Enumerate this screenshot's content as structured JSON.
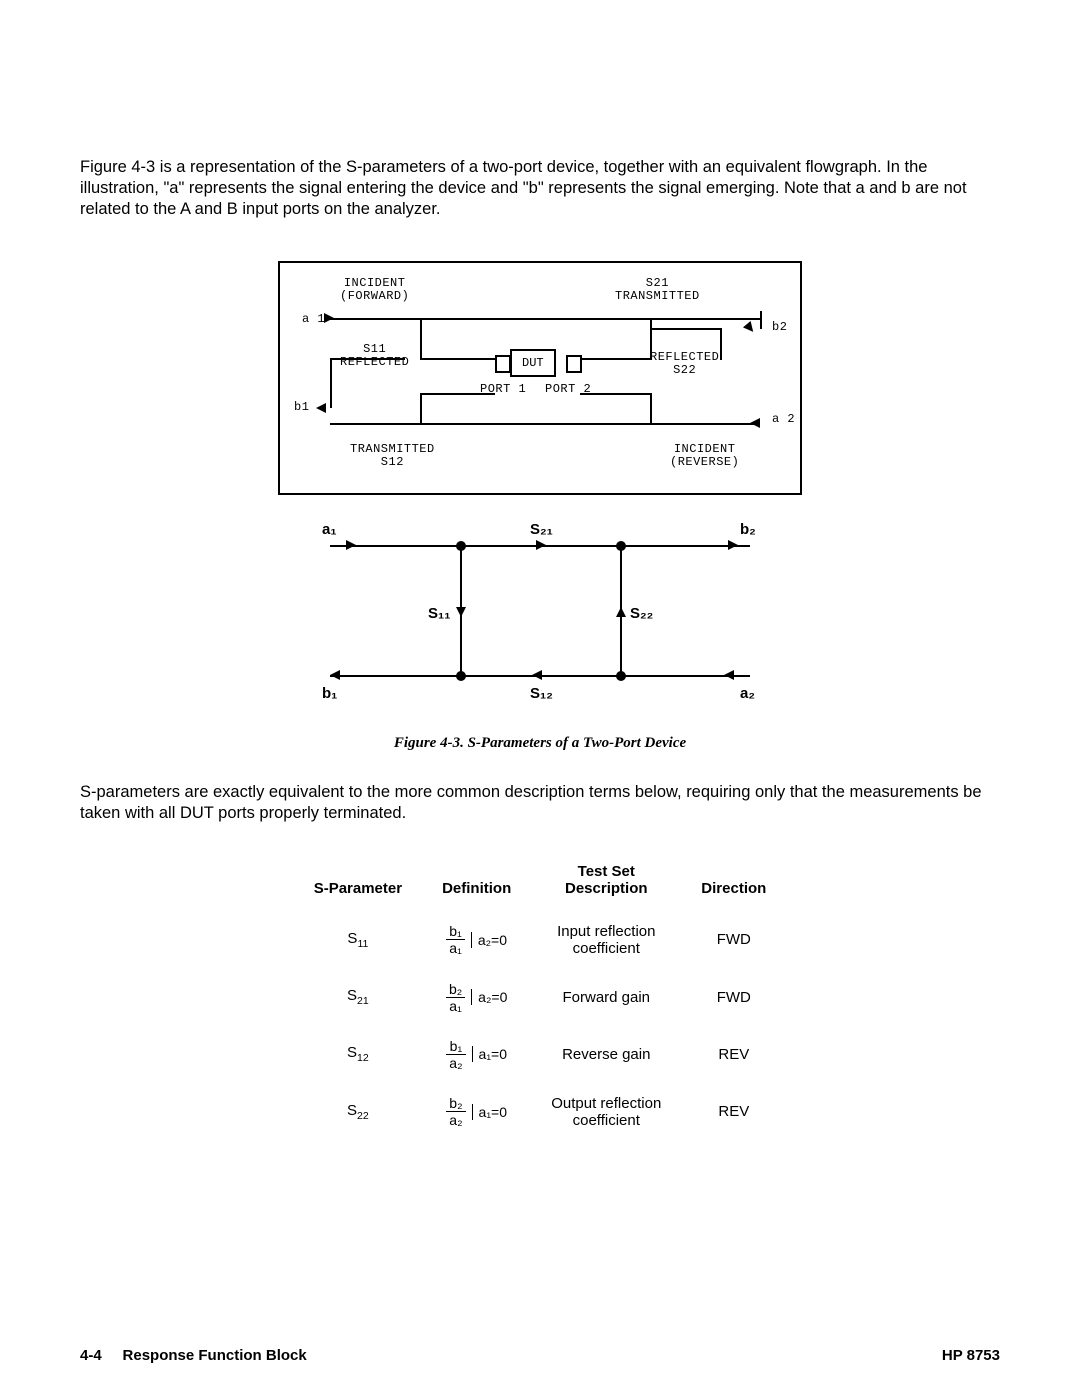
{
  "intro": "Figure 4-3 is a representation of the S-parameters of a two-port device, together with an equivalent flowgraph. In the illustration, \"a\" represents the signal entering the device and \"b\" represents the signal emerging. Note that a and b are not related to the A and B input ports on the analyzer.",
  "block_diagram": {
    "incident_fwd": "INCIDENT\n(FORWARD)",
    "s21_transmitted": "S21\nTRANSMITTED",
    "a1": "a 1",
    "b2": "b2",
    "s11_reflected": "S11\nREFLECTED",
    "dut": "DUT",
    "reflected_s22": "REFLECTED\nS22",
    "port1": "PORT 1",
    "port2": "PORT 2",
    "b1": "b1",
    "a2": "a 2",
    "transmitted_s12": "TRANSMITTED\nS12",
    "incident_rev": "INCIDENT\n(REVERSE)"
  },
  "flowgraph": {
    "a1": "a₁",
    "s21": "S₂₁",
    "b2": "b₂",
    "s11": "S₁₁",
    "s22": "S₂₂",
    "b1": "b₁",
    "s12": "S₁₂",
    "a2": "a₂",
    "line_color": "#000000"
  },
  "caption": "Figure 4-3.   S-Parameters of a Two-Port Device",
  "mid_paragraph": "S-parameters are exactly equivalent to the more common description terms below, requiring only that the measurements be taken with all DUT ports properly terminated.",
  "table": {
    "headers": {
      "param": "S-Parameter",
      "def": "Definition",
      "desc": "Test Set\nDescription",
      "dir": "Direction"
    },
    "rows": [
      {
        "param_base": "S",
        "param_sub": "11",
        "num": "b₁",
        "den": "a₁",
        "cond": "a₂=0",
        "desc": "Input reflection\ncoefficient",
        "dir": "FWD"
      },
      {
        "param_base": "S",
        "param_sub": "21",
        "num": "b₂",
        "den": "a₁",
        "cond": "a₂=0",
        "desc": "Forward gain",
        "dir": "FWD"
      },
      {
        "param_base": "S",
        "param_sub": "12",
        "num": "b₁",
        "den": "a₂",
        "cond": "a₁=0",
        "desc": "Reverse gain",
        "dir": "REV"
      },
      {
        "param_base": "S",
        "param_sub": "22",
        "num": "b₂",
        "den": "a₂",
        "cond": "a₁=0",
        "desc": "Output reflection\ncoefficient",
        "dir": "REV"
      }
    ]
  },
  "footer": {
    "page": "4-4",
    "section": "Response Function Block",
    "product": "HP 8753"
  }
}
